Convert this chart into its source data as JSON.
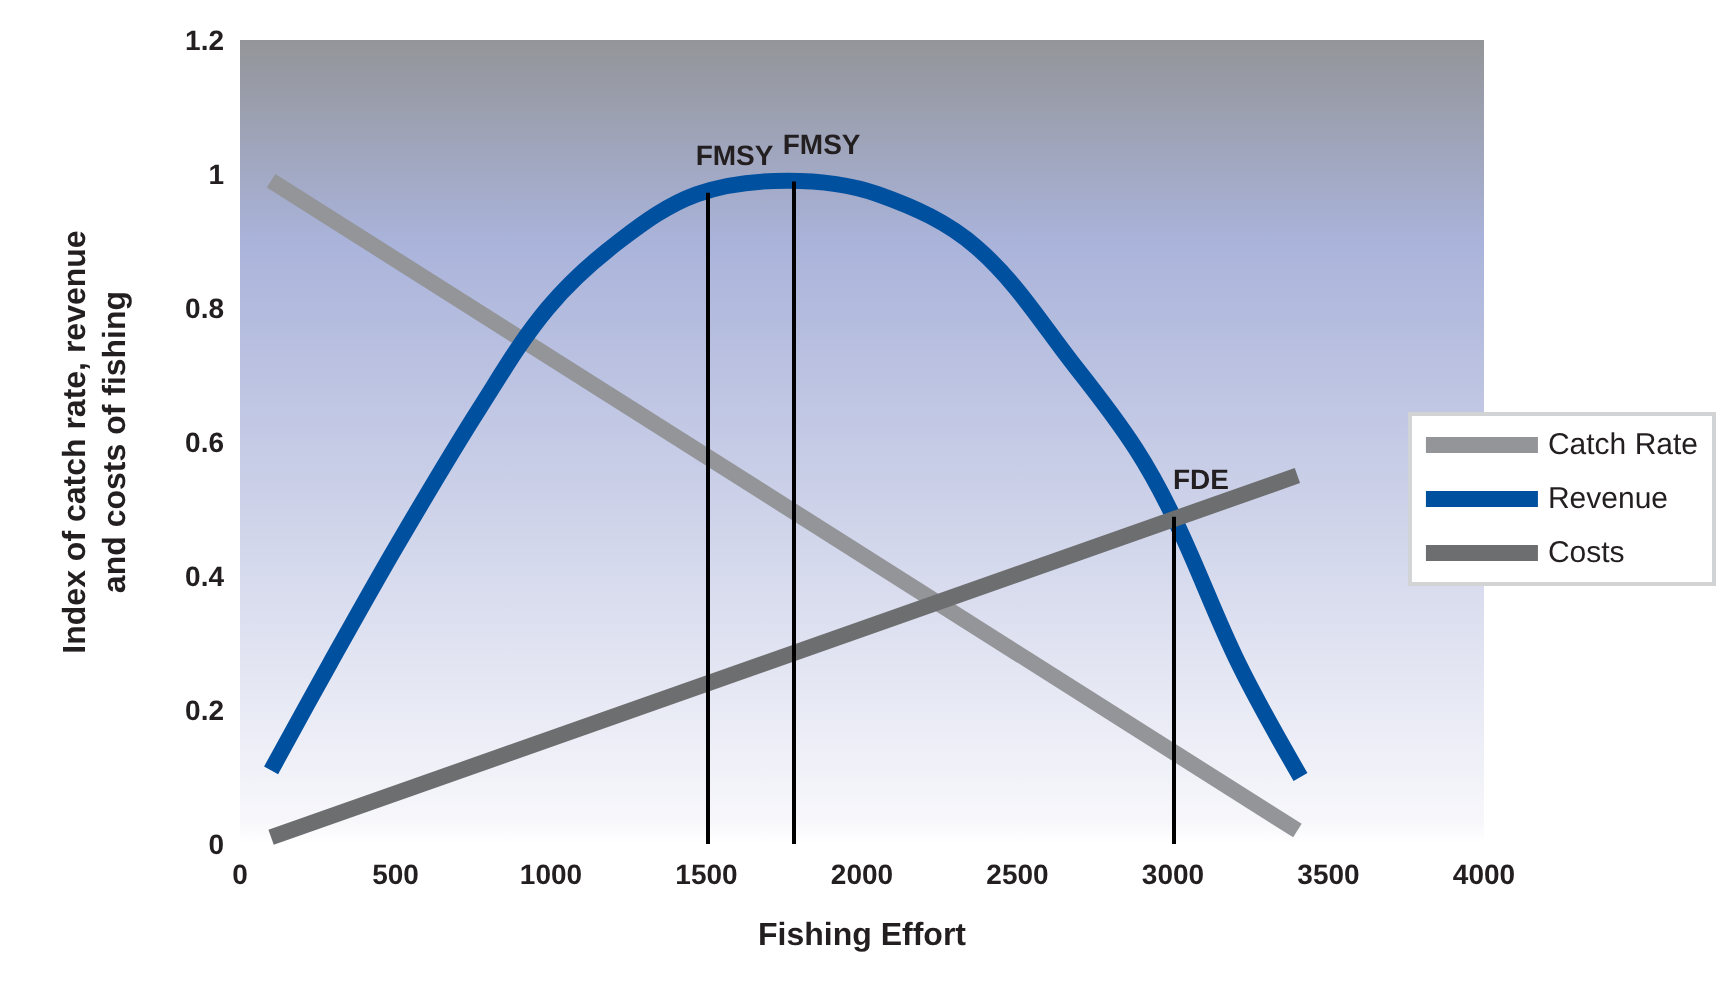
{
  "chart_data": {
    "type": "line",
    "xlabel": "Fishing Effort",
    "ylabel": "Index of catch rate, revenue\nand costs of fishing",
    "xlim": [
      0,
      4000
    ],
    "xticks": [
      0,
      500,
      1000,
      1500,
      2000,
      2500,
      3000,
      3500,
      4000
    ],
    "ylim": [
      0,
      1.2
    ],
    "yticks": [
      0,
      0.2,
      0.4,
      0.6,
      0.8,
      1,
      1.2
    ],
    "grid": false,
    "legend": "right",
    "marker": "none",
    "line_style": "solid",
    "series": [
      {
        "name": "Catch Rate",
        "color": "#939598",
        "x": [
          100,
          3400
        ],
        "values": [
          0.99,
          0.02
        ]
      },
      {
        "name": "Revenue",
        "color": "#0050a0",
        "x": [
          100,
          290,
          510,
          770,
          990,
          1220,
          1470,
          1760,
          2050,
          2370,
          2690,
          2880,
          3010,
          3210,
          3410
        ],
        "values": [
          0.11,
          0.27,
          0.45,
          0.65,
          0.8,
          0.9,
          0.97,
          0.99,
          0.97,
          0.89,
          0.71,
          0.59,
          0.48,
          0.27,
          0.1
        ]
      },
      {
        "name": "Costs",
        "color": "#6d6e70",
        "x": [
          100,
          3400
        ],
        "values": [
          0.01,
          0.55
        ]
      }
    ],
    "ref_lines": [
      {
        "axis": "x",
        "value": 1500,
        "label": "FMSY",
        "color": "#000000"
      },
      {
        "axis": "x",
        "value": 1780,
        "label": "FMSY",
        "color": "#000000"
      },
      {
        "axis": "x",
        "value": 3000,
        "label": "FDE",
        "color": "#000000"
      }
    ]
  }
}
